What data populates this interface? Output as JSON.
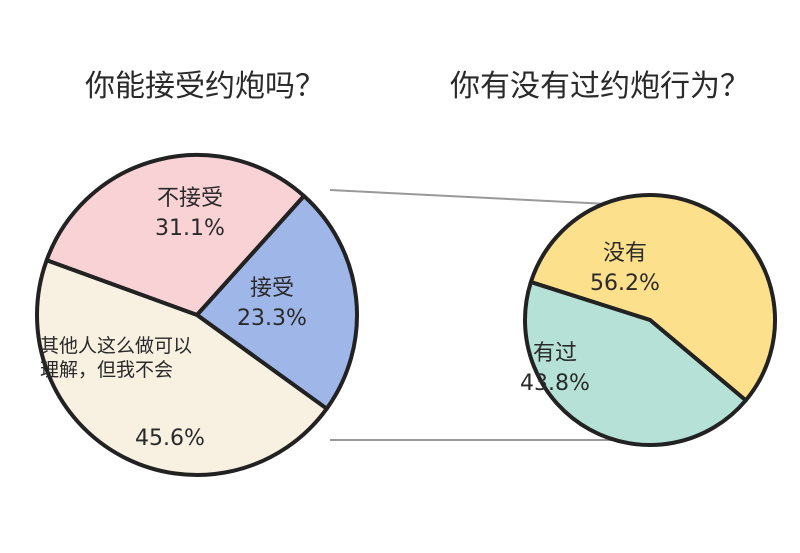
{
  "chart_data": [
    {
      "type": "pie",
      "title": "你能接受约炮吗？",
      "categories": [
        "不接受",
        "接受",
        "其他人这么做可以理解，但我不会"
      ],
      "values": [
        31.1,
        23.3,
        45.6
      ],
      "value_labels": [
        "31.1%",
        "23.3%",
        "45.6%"
      ],
      "colors": [
        "#f9d2d5",
        "#9fb6e8",
        "#f8f1e2"
      ]
    },
    {
      "type": "pie",
      "title": "你有没有过约炮行为？",
      "categories": [
        "没有",
        "有过"
      ],
      "values": [
        56.2,
        43.8
      ],
      "value_labels": [
        "56.2%",
        "43.8%"
      ],
      "colors": [
        "#fde08c",
        "#b6e1d6"
      ]
    }
  ]
}
